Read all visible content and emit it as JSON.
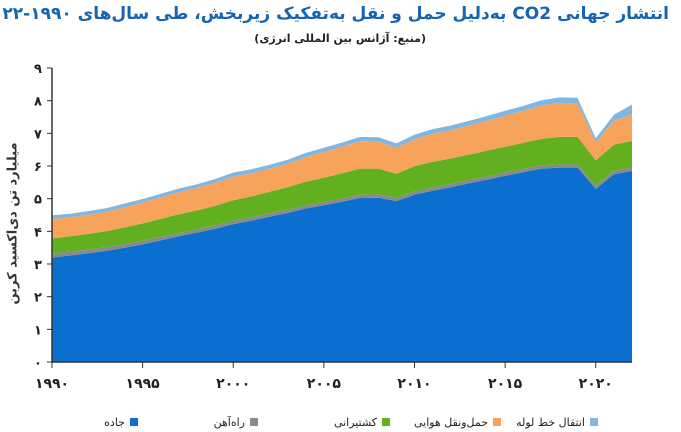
{
  "header": {
    "title": "انتشار جهانی CO2 به‌دلیل حمل و نقل به‌تفکیک زیربخش، طی سال‌های ۱۹۹۰-۲۰۲۲",
    "subtitle": "(منبع: آژانس بین المللی انرژی)"
  },
  "chart_data": {
    "type": "area",
    "stacked": true,
    "title": "انتشار جهانی CO2 به‌دلیل حمل و نقل به‌تفکیک زیربخش، طی سال‌های ۱۹۹۰-۲۰۲۲",
    "subtitle": "(منبع: آژانس بین المللی انرژی)",
    "ylabel": "میلیارد تن دی‌اکسید کربن",
    "xlabel": "",
    "x": [
      1990,
      1991,
      1992,
      1993,
      1994,
      1995,
      1996,
      1997,
      1998,
      1999,
      2000,
      2001,
      2002,
      2003,
      2004,
      2005,
      2006,
      2007,
      2008,
      2009,
      2010,
      2011,
      2012,
      2013,
      2014,
      2015,
      2016,
      2017,
      2018,
      2019,
      2020,
      2021,
      2022
    ],
    "x_tick_values": [
      1990,
      1995,
      2000,
      2005,
      2010,
      2015,
      2020
    ],
    "x_tick_labels": [
      "۱۹۹۰",
      "۱۹۹۵",
      "۲۰۰۰",
      "۲۰۰۵",
      "۲۰۱۰",
      "۲۰۱۵",
      "۲۰۲۰"
    ],
    "y_tick_values": [
      0,
      1,
      2,
      3,
      4,
      5,
      6,
      7,
      8,
      9
    ],
    "y_tick_labels": [
      "۰",
      "۱",
      "۲",
      "۳",
      "۴",
      "۵",
      "۶",
      "۷",
      "۸",
      "۹"
    ],
    "ylim": [
      0,
      9
    ],
    "xlim": [
      1990,
      2022
    ],
    "grid": false,
    "legend_position": "bottom",
    "series": [
      {
        "name": "جاده",
        "color": "#0a6fce",
        "values": [
          3.2,
          3.26,
          3.33,
          3.4,
          3.5,
          3.6,
          3.73,
          3.85,
          3.96,
          4.08,
          4.22,
          4.33,
          4.45,
          4.56,
          4.7,
          4.8,
          4.91,
          5.02,
          5.03,
          4.93,
          5.12,
          5.24,
          5.35,
          5.47,
          5.58,
          5.7,
          5.81,
          5.92,
          5.95,
          5.95,
          5.3,
          5.75,
          5.85
        ]
      },
      {
        "name": "راه‌آهن",
        "color": "#8a8a8a",
        "values": [
          0.12,
          0.12,
          0.11,
          0.11,
          0.11,
          0.11,
          0.1,
          0.1,
          0.1,
          0.1,
          0.1,
          0.1,
          0.1,
          0.1,
          0.1,
          0.1,
          0.1,
          0.1,
          0.1,
          0.1,
          0.1,
          0.1,
          0.1,
          0.1,
          0.1,
          0.1,
          0.1,
          0.1,
          0.1,
          0.1,
          0.1,
          0.1,
          0.1
        ]
      },
      {
        "name": "کشتیرانی",
        "color": "#62b01f",
        "values": [
          0.46,
          0.47,
          0.48,
          0.49,
          0.51,
          0.53,
          0.55,
          0.57,
          0.58,
          0.6,
          0.63,
          0.64,
          0.66,
          0.69,
          0.72,
          0.74,
          0.77,
          0.8,
          0.79,
          0.73,
          0.77,
          0.79,
          0.78,
          0.78,
          0.79,
          0.79,
          0.8,
          0.81,
          0.84,
          0.84,
          0.77,
          0.8,
          0.82
        ]
      },
      {
        "name": "حمل‌ونقل هوایی",
        "color": "#f7a35c",
        "values": [
          0.6,
          0.58,
          0.59,
          0.6,
          0.62,
          0.64,
          0.66,
          0.68,
          0.69,
          0.71,
          0.73,
          0.71,
          0.71,
          0.72,
          0.76,
          0.79,
          0.81,
          0.84,
          0.83,
          0.8,
          0.83,
          0.86,
          0.87,
          0.89,
          0.91,
          0.95,
          0.98,
          1.02,
          1.05,
          1.02,
          0.56,
          0.73,
          0.82
        ]
      },
      {
        "name": "انتقال خط لوله",
        "color": "#7fb6e2",
        "values": [
          0.12,
          0.12,
          0.12,
          0.12,
          0.12,
          0.12,
          0.12,
          0.12,
          0.12,
          0.12,
          0.13,
          0.13,
          0.13,
          0.13,
          0.13,
          0.14,
          0.14,
          0.14,
          0.14,
          0.14,
          0.15,
          0.15,
          0.15,
          0.15,
          0.16,
          0.16,
          0.16,
          0.17,
          0.17,
          0.19,
          0.14,
          0.2,
          0.3
        ]
      }
    ]
  }
}
